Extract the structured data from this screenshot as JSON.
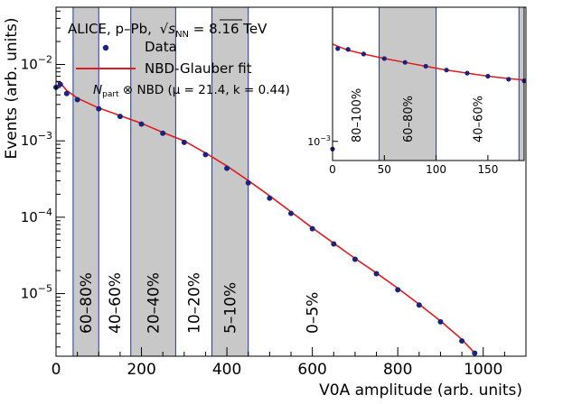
{
  "chart_data": {
    "type": "scatter",
    "title": "",
    "xlabel": "V0A amplitude (arb. units)",
    "ylabel": "Events (arb. units)",
    "xlim": [
      0,
      1100
    ],
    "ylim_log10": [
      -5.82,
      -1.25
    ],
    "x_ticks": [
      0,
      200,
      400,
      600,
      800,
      1000
    ],
    "x_tick_labels": [
      "0",
      "200",
      "400",
      "600",
      "800",
      "1000"
    ],
    "y_ticks_log10": [
      -5,
      -4,
      -3,
      -2
    ],
    "legend": {
      "placement": "top-left",
      "header": "ALICE, p–Pb,",
      "energy_prefix": "s",
      "energy_sub": "NN",
      "energy_value": " = 8.16 TeV",
      "data_label": "Data",
      "fit_label": "NBD-Glauber fit",
      "npart_symbol": "N",
      "npart_sub": "part",
      "npart_rest": " ⊗ NBD (μ = 21.4, k = 0.44)"
    },
    "series": [
      {
        "name": "Data",
        "style": "markers",
        "color": "#1a237e",
        "x": [
          0,
          10,
          25,
          50,
          100,
          150,
          200,
          250,
          300,
          350,
          400,
          450,
          500,
          550,
          600,
          650,
          700,
          750,
          800,
          850,
          900,
          950,
          980
        ],
        "log10_y": [
          -2.3,
          -2.26,
          -2.38,
          -2.46,
          -2.58,
          -2.68,
          -2.78,
          -2.9,
          -3.02,
          -3.18,
          -3.36,
          -3.55,
          -3.75,
          -3.95,
          -4.15,
          -4.35,
          -4.55,
          -4.74,
          -4.95,
          -5.15,
          -5.37,
          -5.62,
          -5.78
        ]
      },
      {
        "name": "NBD-Glauber fit",
        "style": "line",
        "color": "#e31a1c",
        "x": [
          0,
          10,
          25,
          50,
          100,
          150,
          200,
          250,
          300,
          350,
          400,
          450,
          500,
          550,
          600,
          650,
          700,
          750,
          800,
          850,
          900,
          950,
          980
        ],
        "log10_y": [
          -2.22,
          -2.24,
          -2.34,
          -2.44,
          -2.57,
          -2.67,
          -2.77,
          -2.89,
          -3.0,
          -3.16,
          -3.33,
          -3.52,
          -3.72,
          -3.93,
          -4.14,
          -4.34,
          -4.54,
          -4.73,
          -4.93,
          -5.14,
          -5.36,
          -5.6,
          -5.78
        ]
      }
    ],
    "centrality_classes": [
      {
        "label": "60–80%",
        "from": 40,
        "to": 100,
        "shaded": true
      },
      {
        "label": "40–60%",
        "from": 100,
        "to": 175,
        "shaded": false
      },
      {
        "label": "20–40%",
        "from": 175,
        "to": 280,
        "shaded": true
      },
      {
        "label": "10–20%",
        "from": 280,
        "to": 365,
        "shaded": false
      },
      {
        "label": "5–10%",
        "from": 365,
        "to": 450,
        "shaded": true
      },
      {
        "label": "0–5%",
        "from": 450,
        "to": 1100,
        "shaded": false
      }
    ],
    "inset": {
      "xlim": [
        0,
        185
      ],
      "ylim_log10": [
        -3.25,
        -1.25
      ],
      "x_ticks": [
        0,
        50,
        100,
        150
      ],
      "x_tick_labels": [
        "0",
        "50",
        "100",
        "150"
      ],
      "y_ticks_log10": [
        -3
      ],
      "classes": [
        {
          "label": "80–100%",
          "from": 0,
          "to": 45,
          "shaded": false
        },
        {
          "label": "60–80%",
          "from": 45,
          "to": 100,
          "shaded": true
        },
        {
          "label": "40–60%",
          "from": 100,
          "to": 180,
          "shaded": false
        },
        {
          "label": "",
          "from": 180,
          "to": 185,
          "shaded": true
        }
      ],
      "data_log10_y": [
        -3.1,
        -1.79,
        -1.8,
        -1.86,
        -1.92,
        -1.97,
        -2.02,
        -2.07,
        -2.11,
        -2.15,
        -2.19,
        -2.21
      ],
      "fit_log10_y": [
        -1.73,
        -1.76,
        -1.81,
        -1.86,
        -1.92,
        -1.97,
        -2.02,
        -2.07,
        -2.11,
        -2.15,
        -2.18,
        -2.2
      ],
      "x": [
        0,
        5,
        15,
        30,
        50,
        70,
        90,
        110,
        130,
        150,
        170,
        185
      ]
    }
  }
}
